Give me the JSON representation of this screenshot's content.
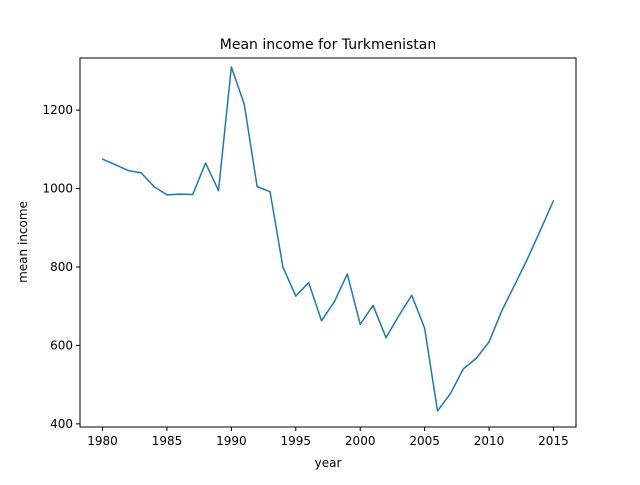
{
  "chart_data": {
    "type": "line",
    "title": "Mean income for Turkmenistan",
    "xlabel": "year",
    "ylabel": "mean income",
    "xlim": [
      1978.25,
      2016.75
    ],
    "ylim": [
      392,
      1333
    ],
    "xticks": [
      1980,
      1985,
      1990,
      1995,
      2000,
      2005,
      2010,
      2015
    ],
    "xtick_labels": [
      "1980",
      "1985",
      "1990",
      "1995",
      "2000",
      "2005",
      "2010",
      "2015"
    ],
    "yticks": [
      400,
      600,
      800,
      1000,
      1200
    ],
    "ytick_labels": [
      "400",
      "600",
      "800",
      "1000",
      "1200"
    ],
    "grid": false,
    "series": [
      {
        "color": "#1f77b4",
        "x": [
          1980,
          1981,
          1982,
          1983,
          1984,
          1985,
          1986,
          1987,
          1988,
          1989,
          1990,
          1991,
          1992,
          1993,
          1994,
          1995,
          1996,
          1997,
          1998,
          1999,
          2000,
          2001,
          2002,
          2003,
          2004,
          2005,
          2006,
          2007,
          2008,
          2009,
          2010,
          2011,
          2012,
          2013,
          2014,
          2015
        ],
        "y": [
          1075,
          1061,
          1046,
          1040,
          1005,
          984,
          986,
          985,
          1065,
          995,
          1310,
          1215,
          1005,
          992,
          800,
          726,
          760,
          663,
          712,
          782,
          654,
          702,
          620,
          676,
          728,
          644,
          433,
          477,
          540,
          567,
          609,
          689,
          755,
          822,
          895,
          969
        ]
      }
    ]
  }
}
